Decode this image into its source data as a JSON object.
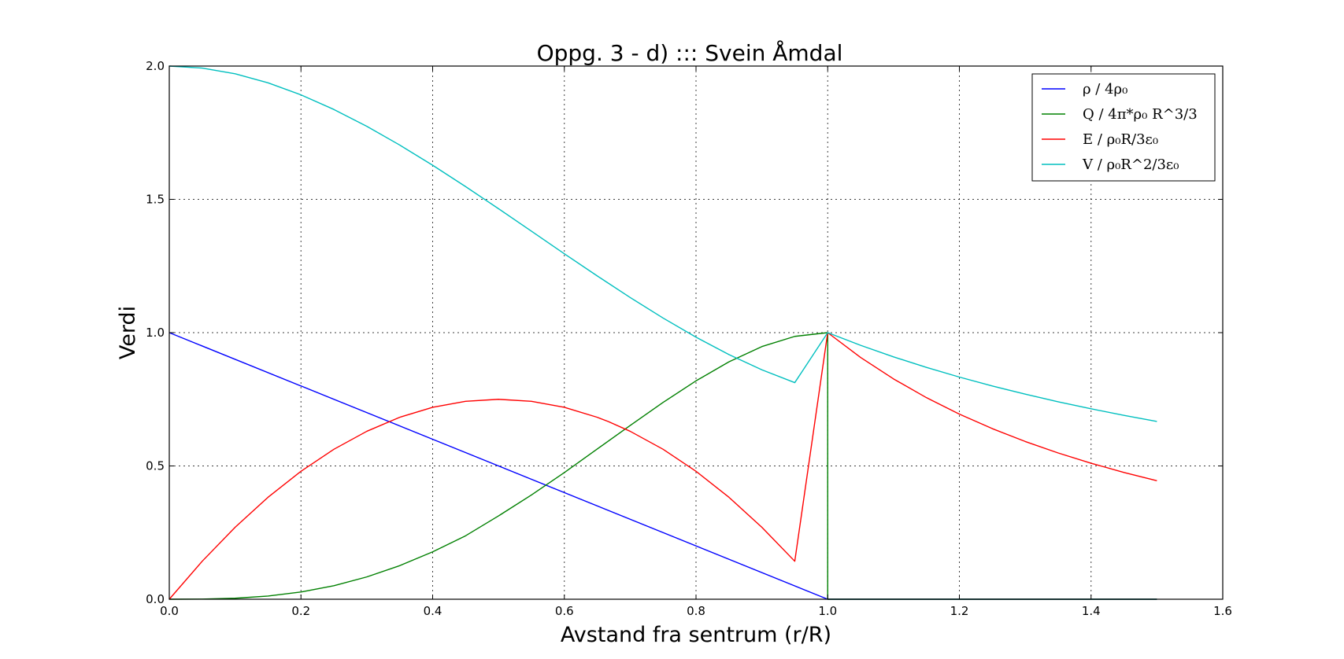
{
  "chart_data": {
    "type": "line",
    "title": "Oppg. 3 - d)  :::  Svein Åmdal",
    "xlabel": "Avstand fra sentrum (r/R)",
    "ylabel": "Verdi",
    "xlim": [
      0,
      1.6
    ],
    "ylim": [
      0,
      2.0
    ],
    "xticks": [
      "0.0",
      "0.2",
      "0.4",
      "0.6",
      "0.8",
      "1.0",
      "1.2",
      "1.4",
      "1.6"
    ],
    "yticks": [
      "0.0",
      "0.5",
      "1.0",
      "1.5",
      "2.0"
    ],
    "grid": true,
    "legend_position": "top-right",
    "series": [
      {
        "name": "ρ / 4ρ₀",
        "color": "#0000ff",
        "x": [
          0.0,
          1.0,
          1.0,
          1.5
        ],
        "y": [
          1.0,
          0.0,
          0.0,
          0.0
        ]
      },
      {
        "name": "Q / 4π*ρ₀ R^3/3",
        "color": "#008000",
        "x": [
          0.0,
          0.05,
          0.1,
          0.15,
          0.2,
          0.25,
          0.3,
          0.35,
          0.4,
          0.45,
          0.5,
          0.55,
          0.6,
          0.65,
          0.7,
          0.75,
          0.8,
          0.85,
          0.9,
          0.95,
          1.0,
          1.0,
          1.5
        ],
        "y": [
          0.0,
          0.0005,
          0.0037,
          0.0119,
          0.0272,
          0.0508,
          0.0837,
          0.126,
          0.1776,
          0.238,
          0.3125,
          0.391,
          0.4752,
          0.5636,
          0.6517,
          0.7383,
          0.8192,
          0.8905,
          0.9477,
          0.986,
          1.0,
          0.0,
          0.0
        ]
      },
      {
        "name": "E / ρ₀R/3ε₀",
        "color": "#ff0000",
        "x": [
          0.0,
          0.05,
          0.1,
          0.15,
          0.2,
          0.25,
          0.3,
          0.35,
          0.4,
          0.45,
          0.5,
          0.55,
          0.6,
          0.65,
          0.6667,
          0.7,
          0.75,
          0.8,
          0.85,
          0.9,
          0.95,
          1.0,
          1.05,
          1.1,
          1.15,
          1.2,
          1.25,
          1.3,
          1.35,
          1.4,
          1.45,
          1.5
        ],
        "y": [
          0.0,
          0.1425,
          0.27,
          0.3825,
          0.48,
          0.5625,
          0.63,
          0.6825,
          0.72,
          0.7425,
          0.75,
          0.7425,
          0.72,
          0.6825,
          0.6667,
          0.63,
          0.5625,
          0.48,
          0.3825,
          0.27,
          0.1425,
          1.0,
          0.907,
          0.8264,
          0.7561,
          0.6944,
          0.64,
          0.5917,
          0.5487,
          0.5102,
          0.4756,
          0.4444
        ]
      },
      {
        "name": "V / ρ₀R^2/3ε₀",
        "color": "#00bfbf",
        "x": [
          0.0,
          0.05,
          0.1,
          0.15,
          0.2,
          0.25,
          0.3,
          0.35,
          0.4,
          0.45,
          0.5,
          0.55,
          0.6,
          0.65,
          0.7,
          0.75,
          0.8,
          0.85,
          0.9,
          0.95,
          1.0,
          1.05,
          1.1,
          1.15,
          1.2,
          1.25,
          1.3,
          1.35,
          1.4,
          1.45,
          1.5
        ],
        "y": [
          2.0,
          1.9925,
          1.971,
          1.9371,
          1.892,
          1.8372,
          1.774,
          1.7037,
          1.628,
          1.5479,
          1.465,
          1.3807,
          1.296,
          1.2127,
          1.1318,
          1.0548,
          0.983,
          0.9178,
          0.8606,
          0.8125,
          1.0,
          0.9524,
          0.9091,
          0.8696,
          0.8333,
          0.8,
          0.7692,
          0.7407,
          0.7143,
          0.6897,
          0.6667
        ]
      }
    ]
  }
}
